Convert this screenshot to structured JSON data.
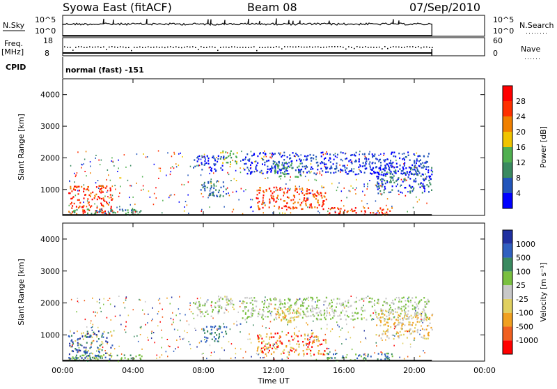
{
  "header": {
    "station": "Syowa East (fitACF)",
    "beam": "Beam 08",
    "date": "07/Sep/2010"
  },
  "top_panels": {
    "nsky_label": "N.Sky",
    "nsky_scale": [
      "10^5",
      "10^0"
    ],
    "nsearch_label": "N.Search",
    "nsearch_scale": [
      "10^5",
      "10^0"
    ],
    "freq_label_1": "Freq.",
    "freq_label_2": "[MHz]",
    "freq_scale": [
      "18",
      "8"
    ],
    "nave_label": "Nave",
    "nave_scale": [
      "60",
      "0"
    ],
    "cpid_label": "CPID",
    "cpid_text": "normal (fast) -151"
  },
  "colors": {
    "power": [
      "#0000ff",
      "#2255bb",
      "#3a8a60",
      "#50b050",
      "#f0c400",
      "#f08000",
      "#ff3000",
      "#ff0000"
    ],
    "velocity": [
      "#2030a0",
      "#3060c0",
      "#3a8a60",
      "#7ac040",
      "#c8c8c8",
      "#e0d060",
      "#f0a020",
      "#f06020",
      "#ff0000"
    ]
  },
  "chart_data": [
    {
      "type": "heatmap",
      "ylabel": "Slant Range [km]",
      "xlabel": "Time UT",
      "x_ticks": [
        "00:00",
        "04:00",
        "08:00",
        "12:00",
        "16:00",
        "20:00",
        "00:00"
      ],
      "y_ticks": [
        "1000",
        "2000",
        "3000",
        "4000"
      ],
      "ylim": [
        180,
        4500
      ],
      "xlim_hours": [
        0,
        24
      ],
      "data_end_hour": 21,
      "colorbar": {
        "label": "Power [dB]",
        "ticks": [
          "4",
          "8",
          "12",
          "16",
          "20",
          "24",
          "28"
        ]
      },
      "regions": [
        {
          "t": [
            0.3,
            2.8
          ],
          "r": [
            250,
            1150
          ],
          "c": [
            5,
            6,
            7
          ]
        },
        {
          "t": [
            0.2,
            4.5
          ],
          "r": [
            200,
            400
          ],
          "c": [
            2,
            3,
            1
          ]
        },
        {
          "t": [
            7.4,
            9.2
          ],
          "r": [
            1600,
            2100
          ],
          "c": [
            0,
            1
          ]
        },
        {
          "t": [
            8.8,
            9.9
          ],
          "r": [
            1800,
            2250
          ],
          "c": [
            2,
            3,
            4
          ]
        },
        {
          "t": [
            7.8,
            9.3
          ],
          "r": [
            800,
            1300
          ],
          "c": [
            1,
            2
          ]
        },
        {
          "t": [
            10.2,
            20.8
          ],
          "r": [
            1500,
            2200
          ],
          "c": [
            0,
            1
          ]
        },
        {
          "t": [
            11.0,
            15.0
          ],
          "r": [
            400,
            1100
          ],
          "c": [
            5,
            6,
            7
          ]
        },
        {
          "t": [
            12.0,
            13.5
          ],
          "r": [
            1400,
            1900
          ],
          "c": [
            2,
            3
          ]
        },
        {
          "t": [
            15.0,
            18.8
          ],
          "r": [
            220,
            450
          ],
          "c": [
            6,
            7,
            5
          ]
        },
        {
          "t": [
            17.8,
            21.0
          ],
          "r": [
            900,
            1800
          ],
          "c": [
            0,
            1,
            2
          ]
        }
      ]
    },
    {
      "type": "heatmap",
      "ylabel": "Slant Range [km]",
      "xlabel": "Time UT",
      "x_ticks": [
        "00:00",
        "04:00",
        "08:00",
        "12:00",
        "16:00",
        "20:00",
        "00:00"
      ],
      "y_ticks": [
        "1000",
        "2000",
        "3000",
        "4000"
      ],
      "ylim": [
        180,
        4500
      ],
      "xlim_hours": [
        0,
        24
      ],
      "data_end_hour": 21,
      "colorbar": {
        "label": "Velocity [m s⁻¹]",
        "ticks": [
          "1000",
          "500",
          "100",
          "25",
          "-25",
          "-100",
          "-500",
          "-1000"
        ]
      },
      "regions": [
        {
          "t": [
            0.3,
            2.8
          ],
          "r": [
            250,
            1150
          ],
          "c": [
            6,
            7,
            8,
            3
          ]
        },
        {
          "t": [
            0.2,
            4.5
          ],
          "r": [
            200,
            400
          ],
          "c": [
            5,
            6
          ]
        },
        {
          "t": [
            7.4,
            9.2
          ],
          "r": [
            1600,
            2100
          ],
          "c": [
            4,
            5
          ]
        },
        {
          "t": [
            8.8,
            9.9
          ],
          "r": [
            1800,
            2250
          ],
          "c": [
            3,
            4,
            5
          ]
        },
        {
          "t": [
            7.8,
            9.3
          ],
          "r": [
            800,
            1300
          ],
          "c": [
            6,
            7
          ]
        },
        {
          "t": [
            10.2,
            20.8
          ],
          "r": [
            1500,
            2200
          ],
          "c": [
            4,
            5
          ]
        },
        {
          "t": [
            11.0,
            15.0
          ],
          "r": [
            400,
            1100
          ],
          "c": [
            2,
            3,
            0
          ]
        },
        {
          "t": [
            12.0,
            13.5
          ],
          "r": [
            1400,
            1900
          ],
          "c": [
            2,
            3
          ]
        },
        {
          "t": [
            15.0,
            18.8
          ],
          "r": [
            220,
            450
          ],
          "c": [
            6,
            7,
            5
          ]
        },
        {
          "t": [
            17.8,
            21.0
          ],
          "r": [
            900,
            1800
          ],
          "c": [
            2,
            3,
            4
          ]
        }
      ]
    }
  ]
}
